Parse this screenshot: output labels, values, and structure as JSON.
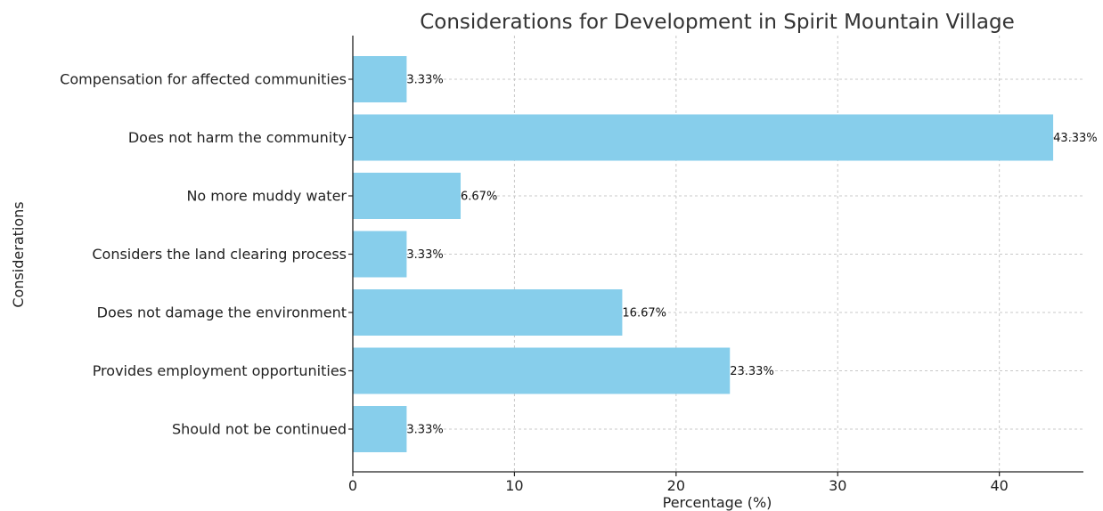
{
  "chart_data": {
    "type": "bar",
    "orientation": "horizontal",
    "title": "Considerations for Development in Spirit Mountain Village",
    "xlabel": "Percentage (%)",
    "ylabel": "Considerations",
    "categories": [
      "Compensation for affected communities",
      "Does not harm the community",
      "No more muddy water",
      "Considers the land clearing process",
      "Does not damage the environment",
      "Provides employment opportunities",
      "Should not be continued"
    ],
    "values": [
      3.33,
      43.33,
      6.67,
      3.33,
      16.67,
      23.33,
      3.33
    ],
    "value_labels": [
      "3.33%",
      "43.33%",
      "6.67%",
      "3.33%",
      "16.67%",
      "23.33%",
      "3.33%"
    ],
    "xticks": [
      0,
      10,
      20,
      30,
      40
    ],
    "xtick_labels": [
      "0",
      "10",
      "20",
      "30",
      "40"
    ],
    "xlim": [
      0,
      45.2
    ],
    "grid": true,
    "bar_color": "#87CEEB"
  }
}
